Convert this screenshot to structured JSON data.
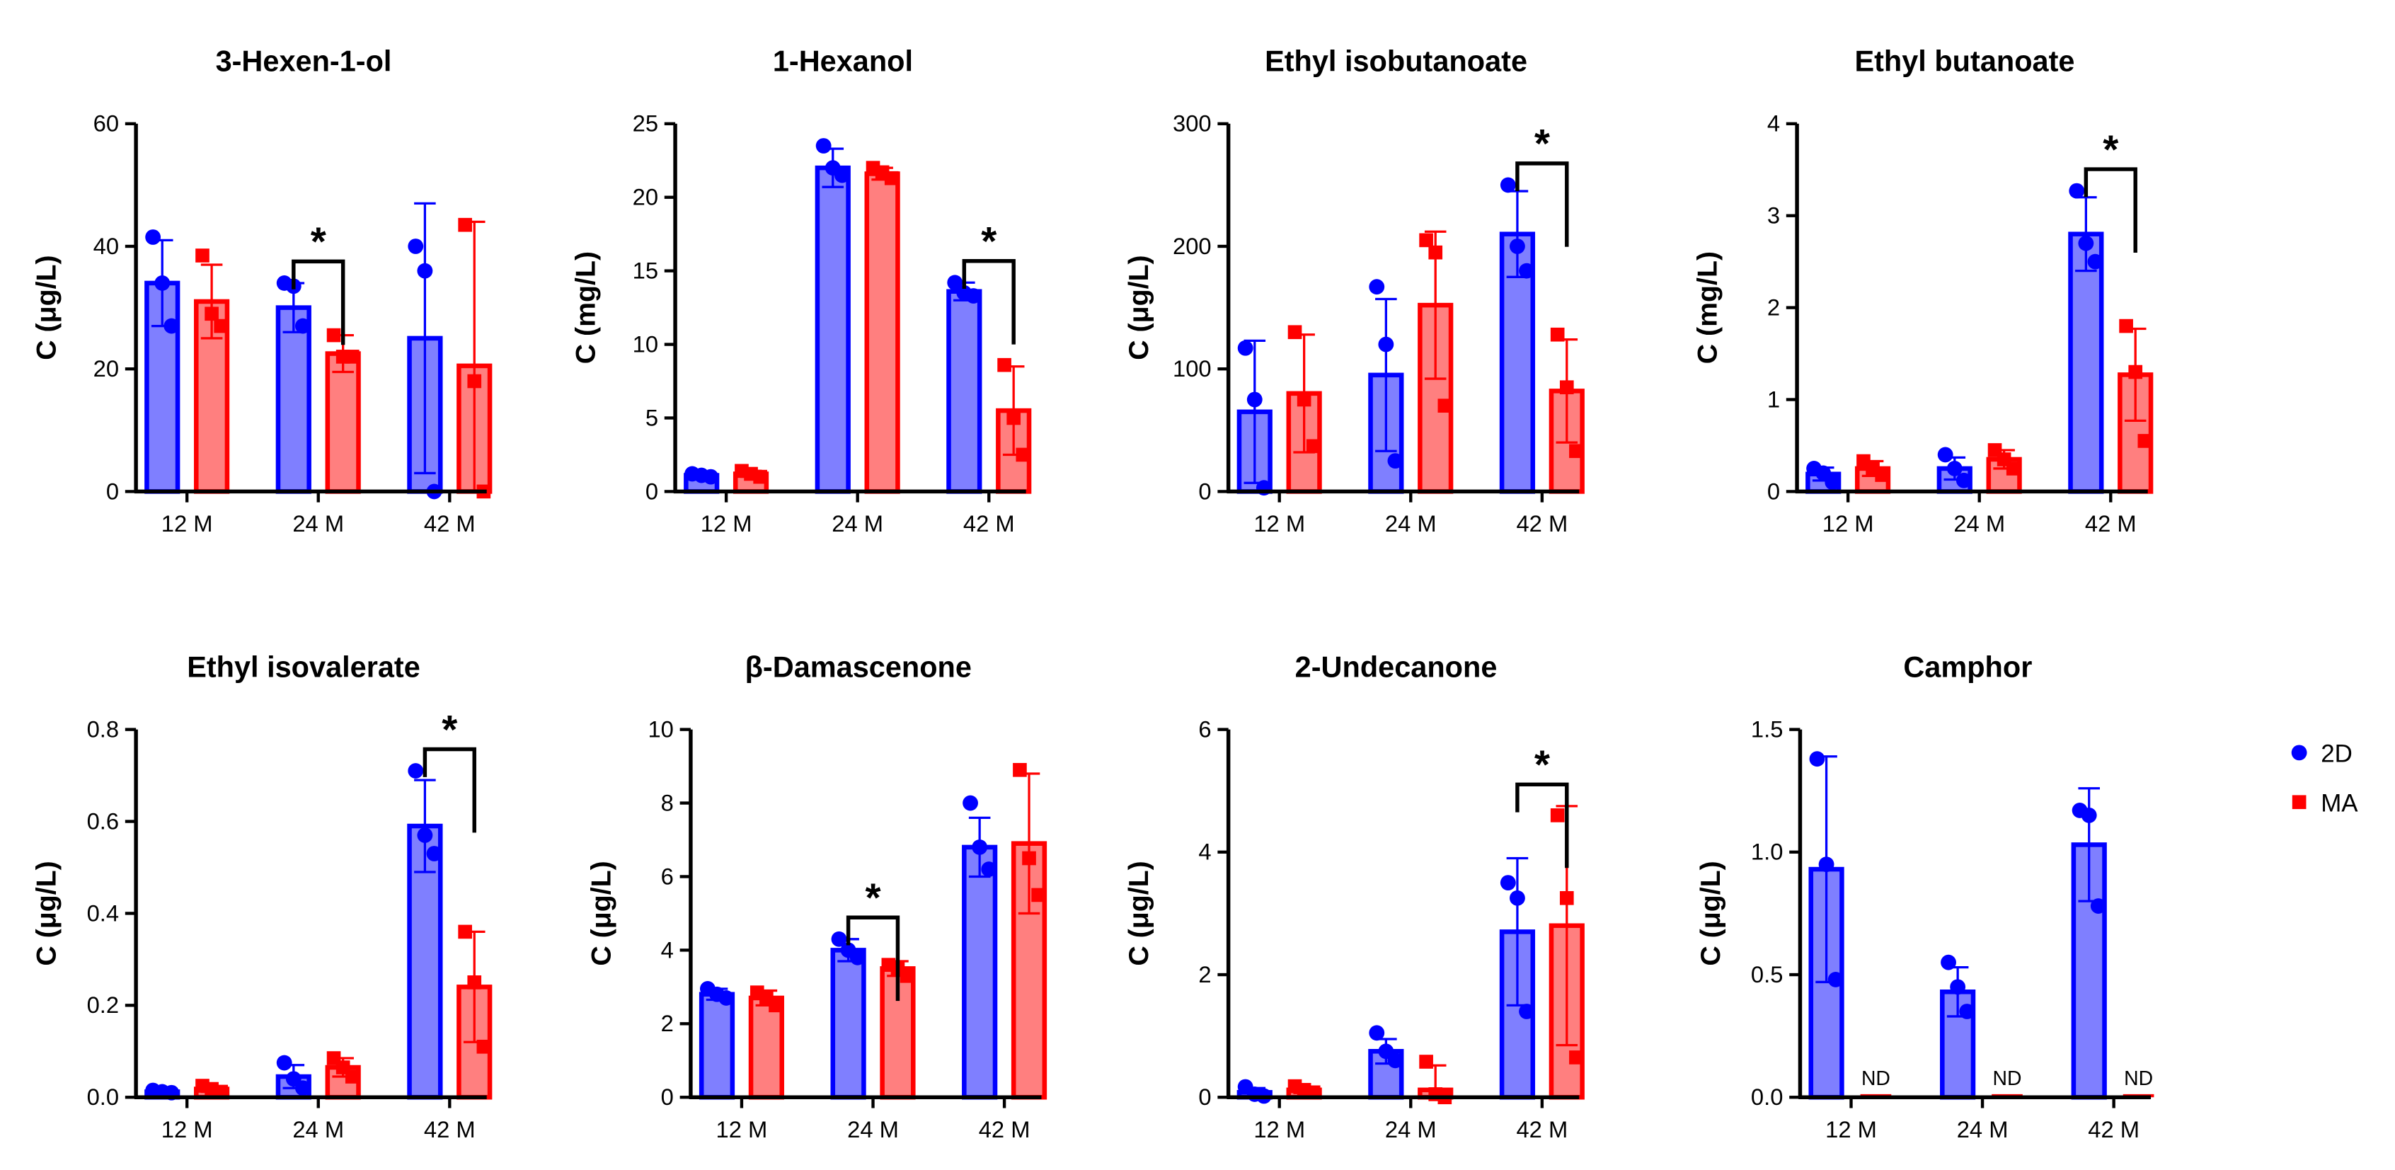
{
  "chart_data": [
    {
      "type": "bar",
      "title": "3-Hexen-1-ol",
      "y_label": "C (μg/L)",
      "categories": [
        "12 M",
        "24 M",
        "42 M"
      ],
      "ylim": [
        0,
        60
      ],
      "yticks": [
        0,
        20,
        40,
        60
      ],
      "series": [
        {
          "name": "2D",
          "color": "#0000ff",
          "values": [
            34,
            30,
            25
          ],
          "errors": [
            7,
            4,
            22
          ],
          "points": [
            [
              41.5,
              34,
              27
            ],
            [
              34,
              33.5,
              27
            ],
            [
              40,
              36,
              0
            ]
          ]
        },
        {
          "name": "MA",
          "color": "#ff0000",
          "values": [
            31,
            22.5,
            20.5
          ],
          "errors": [
            6,
            3,
            23.5
          ],
          "points": [
            [
              38.5,
              29,
              27
            ],
            [
              25.5,
              22,
              22
            ],
            [
              43.5,
              18,
              0
            ]
          ]
        }
      ],
      "annotations": [
        {
          "text": "*",
          "category": 1
        }
      ]
    },
    {
      "type": "bar",
      "title": "1-Hexanol",
      "y_label": "C (mg/L)",
      "categories": [
        "12 M",
        "24 M",
        "42 M"
      ],
      "ylim": [
        0,
        25
      ],
      "yticks": [
        0,
        5,
        10,
        15,
        20,
        25
      ],
      "series": [
        {
          "name": "2D",
          "color": "#0000ff",
          "values": [
            1.1,
            22,
            13.6
          ],
          "errors": [
            0.2,
            1.3,
            0.6
          ],
          "points": [
            [
              1.2,
              1.1,
              1.0
            ],
            [
              23.5,
              22,
              21.5
            ],
            [
              14.2,
              13.5,
              13.3
            ]
          ]
        },
        {
          "name": "MA",
          "color": "#ff0000",
          "values": [
            1.2,
            21.6,
            5.5
          ],
          "errors": [
            0.2,
            0.4,
            3
          ],
          "points": [
            [
              1.4,
              1.2,
              1.0
            ],
            [
              22,
              21.7,
              21.3
            ],
            [
              8.6,
              5,
              2.5
            ]
          ]
        }
      ],
      "annotations": [
        {
          "text": "*",
          "category": 2
        }
      ]
    },
    {
      "type": "bar",
      "title": "Ethyl isobutanoate",
      "y_label": "C (μg/L)",
      "categories": [
        "12 M",
        "24 M",
        "42 M"
      ],
      "ylim": [
        0,
        300
      ],
      "yticks": [
        0,
        100,
        200,
        300
      ],
      "series": [
        {
          "name": "2D",
          "color": "#0000ff",
          "values": [
            65,
            95,
            210
          ],
          "errors": [
            58,
            62,
            35
          ],
          "points": [
            [
              117,
              75,
              3
            ],
            [
              167,
              120,
              25
            ],
            [
              250,
              200,
              180
            ]
          ]
        },
        {
          "name": "MA",
          "color": "#ff0000",
          "values": [
            80,
            152,
            82
          ],
          "errors": [
            48,
            60,
            42
          ],
          "points": [
            [
              130,
              75,
              37
            ],
            [
              205,
              195,
              70
            ],
            [
              128,
              85,
              33
            ]
          ]
        }
      ],
      "annotations": [
        {
          "text": "*",
          "category": 2
        }
      ]
    },
    {
      "type": "bar",
      "title": "Ethyl butanoate",
      "y_label": "C (mg/L)",
      "categories": [
        "12 M",
        "24 M",
        "42 M"
      ],
      "ylim": [
        0,
        4
      ],
      "yticks": [
        0,
        1,
        2,
        3,
        4
      ],
      "series": [
        {
          "name": "2D",
          "color": "#0000ff",
          "values": [
            0.19,
            0.25,
            2.8
          ],
          "errors": [
            0.07,
            0.12,
            0.4
          ],
          "points": [
            [
              0.25,
              0.2,
              0.1
            ],
            [
              0.4,
              0.25,
              0.12
            ],
            [
              3.27,
              2.7,
              2.5
            ]
          ]
        },
        {
          "name": "MA",
          "color": "#ff0000",
          "values": [
            0.25,
            0.35,
            1.27
          ],
          "errors": [
            0.08,
            0.1,
            0.5
          ],
          "points": [
            [
              0.33,
              0.25,
              0.18
            ],
            [
              0.45,
              0.35,
              0.25
            ],
            [
              1.8,
              1.3,
              0.55
            ]
          ]
        }
      ],
      "annotations": [
        {
          "text": "*",
          "category": 2
        }
      ]
    },
    {
      "type": "bar",
      "title": "Ethyl isovalerate",
      "y_label": "C (μg/L)",
      "categories": [
        "12 M",
        "24 M",
        "42 M"
      ],
      "ylim": [
        0,
        0.8
      ],
      "yticks": [
        {
          "value": 0,
          "label": "0.0"
        },
        0.2,
        0.4,
        0.6,
        0.8
      ],
      "series": [
        {
          "name": "2D",
          "color": "#0000ff",
          "values": [
            0.012,
            0.045,
            0.59
          ],
          "errors": [
            0.004,
            0.025,
            0.1
          ],
          "points": [
            [
              0.015,
              0.012,
              0.01
            ],
            [
              0.075,
              0.04,
              0.02
            ],
            [
              0.71,
              0.57,
              0.53
            ]
          ]
        },
        {
          "name": "MA",
          "color": "#ff0000",
          "values": [
            0.018,
            0.065,
            0.24
          ],
          "errors": [
            0.006,
            0.02,
            0.12
          ],
          "points": [
            [
              0.025,
              0.018,
              0.012
            ],
            [
              0.085,
              0.065,
              0.045
            ],
            [
              0.36,
              0.25,
              0.11
            ]
          ]
        }
      ],
      "annotations": [
        {
          "text": "*",
          "category": 2
        }
      ]
    },
    {
      "type": "bar",
      "title": "β-Damascenone",
      "y_label": "C (μg/L)",
      "categories": [
        "12 M",
        "24 M",
        "42 M"
      ],
      "ylim": [
        0,
        10
      ],
      "yticks": [
        0,
        2,
        4,
        6,
        8,
        10
      ],
      "series": [
        {
          "name": "2D",
          "color": "#0000ff",
          "values": [
            2.8,
            4.0,
            6.8
          ],
          "errors": [
            0.15,
            0.3,
            0.8
          ],
          "points": [
            [
              2.95,
              2.8,
              2.7
            ],
            [
              4.3,
              4.0,
              3.8
            ],
            [
              8.0,
              6.8,
              6.2
            ]
          ]
        },
        {
          "name": "MA",
          "color": "#ff0000",
          "values": [
            2.7,
            3.5,
            6.9
          ],
          "errors": [
            0.2,
            0.2,
            1.9
          ],
          "points": [
            [
              2.85,
              2.7,
              2.5
            ],
            [
              3.6,
              3.5,
              3.3
            ],
            [
              8.9,
              6.5,
              5.5
            ]
          ]
        }
      ],
      "annotations": [
        {
          "text": "*",
          "category": 1
        }
      ]
    },
    {
      "type": "bar",
      "title": "2-Undecanone",
      "y_label": "C (μg/L)",
      "categories": [
        "12 M",
        "24 M",
        "42 M"
      ],
      "ylim": [
        0,
        6
      ],
      "yticks": [
        0,
        2,
        4,
        6
      ],
      "series": [
        {
          "name": "2D",
          "color": "#0000ff",
          "values": [
            0.08,
            0.75,
            2.7
          ],
          "errors": [
            0.07,
            0.2,
            1.2
          ],
          "points": [
            [
              0.17,
              0.05,
              0.02
            ],
            [
              1.05,
              0.75,
              0.6
            ],
            [
              3.5,
              3.25,
              1.4
            ]
          ]
        },
        {
          "name": "MA",
          "color": "#ff0000",
          "values": [
            0.12,
            0.12,
            2.8
          ],
          "errors": [
            0.05,
            0.4,
            1.95
          ],
          "points": [
            [
              0.18,
              0.12,
              0.08
            ],
            [
              0.58,
              0.05,
              0.0
            ],
            [
              4.6,
              3.25,
              0.65
            ]
          ]
        }
      ],
      "annotations": [
        {
          "text": "*",
          "category": 2
        }
      ]
    },
    {
      "type": "bar",
      "title": "Camphor",
      "y_label": "C (μg/L)",
      "categories": [
        "12 M",
        "24 M",
        "42 M"
      ],
      "ylim": [
        0,
        1.5
      ],
      "yticks": [
        {
          "value": 0,
          "label": "0.0"
        },
        0.5,
        {
          "value": 1,
          "label": "1.0"
        },
        1.5
      ],
      "series": [
        {
          "name": "2D",
          "color": "#0000ff",
          "values": [
            0.93,
            0.43,
            1.03
          ],
          "errors": [
            0.46,
            0.1,
            0.23
          ],
          "points": [
            [
              1.38,
              0.95,
              0.48
            ],
            [
              0.55,
              0.45,
              0.35
            ],
            [
              1.17,
              1.15,
              0.78
            ]
          ]
        },
        {
          "name": "MA",
          "color": "#ff0000",
          "values": [
            null,
            null,
            null
          ]
        }
      ],
      "annotations": [
        {
          "text": "ND",
          "category": 0,
          "series": 1
        },
        {
          "text": "ND",
          "category": 1,
          "series": 1
        },
        {
          "text": "ND",
          "category": 2,
          "series": 1
        }
      ]
    }
  ]
}
